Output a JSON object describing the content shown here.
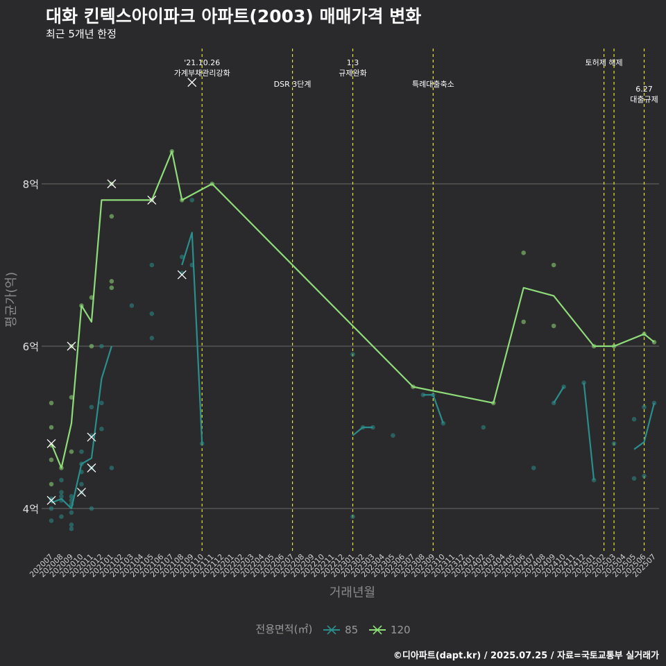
{
  "header": {
    "title": "대화 킨텍스아이파크 아파트(2003) 매매가격 변화",
    "subtitle": "최근 5개년 한정"
  },
  "caption": "©디아파트(dapt.kr) / 2025.07.25 / 자료=국토교통부 실거래가",
  "legend": {
    "title": "전용면적(㎡)",
    "items": [
      {
        "label": "85",
        "color": "#2a8f8c"
      },
      {
        "label": "120",
        "color": "#8fdc7a"
      }
    ]
  },
  "chart_data": {
    "type": "line",
    "xlabel": "거래년월",
    "ylabel": "평균가(억)",
    "x": [
      "202007",
      "202008",
      "202009",
      "202010",
      "202011",
      "202012",
      "202101",
      "202102",
      "202103",
      "202104",
      "202105",
      "202106",
      "202107",
      "202108",
      "202109",
      "202110",
      "202111",
      "202112",
      "202201",
      "202202",
      "202203",
      "202204",
      "202205",
      "202206",
      "202207",
      "202208",
      "202209",
      "202210",
      "202211",
      "202212",
      "202301",
      "202302",
      "202303",
      "202304",
      "202305",
      "202306",
      "202307",
      "202308",
      "202309",
      "202310",
      "202311",
      "202312",
      "202401",
      "202402",
      "202403",
      "202404",
      "202405",
      "202406",
      "202407",
      "202408",
      "202409",
      "202410",
      "202411",
      "202412",
      "202501",
      "202502",
      "202503",
      "202504",
      "202505",
      "202506",
      "202507"
    ],
    "ylim": [
      3.5,
      9.6
    ],
    "yticks": [
      {
        "value": 4,
        "label": "4억"
      },
      {
        "value": 6,
        "label": "6억"
      },
      {
        "value": 8,
        "label": "8억"
      }
    ],
    "grid": true,
    "legend_position": "bottom",
    "series": [
      {
        "name": "85",
        "color": "#2a8f8c",
        "line": [
          [
            "202007",
            4.07
          ],
          [
            "202008",
            4.12
          ],
          [
            "202009",
            4.0
          ],
          [
            "202010",
            4.55
          ],
          [
            "202011",
            4.62
          ],
          [
            "202012",
            5.6
          ],
          [
            "202101",
            6.0
          ],
          null,
          [
            "202108",
            7.0
          ],
          [
            "202109",
            7.4
          ],
          [
            "202110",
            4.8
          ],
          null,
          [
            "202301",
            4.9
          ],
          [
            "202302",
            5.0
          ],
          [
            "202303",
            5.0
          ],
          null,
          [
            "202308",
            5.4
          ],
          [
            "202309",
            5.4
          ],
          [
            "202310",
            5.05
          ],
          null,
          [
            "202409",
            5.3
          ],
          [
            "202410",
            5.5
          ],
          null,
          [
            "202412",
            5.55
          ],
          [
            "202501",
            4.35
          ],
          null,
          [
            "202505",
            4.73
          ],
          [
            "202506",
            4.82
          ],
          [
            "202507",
            5.3
          ]
        ],
        "points": [
          [
            "202007",
            4.1
          ],
          [
            "202007",
            4.0
          ],
          [
            "202007",
            3.85
          ],
          [
            "202007",
            4.12
          ],
          [
            "202008",
            4.35
          ],
          [
            "202008",
            4.2
          ],
          [
            "202008",
            4.15
          ],
          [
            "202008",
            4.1
          ],
          [
            "202008",
            3.9
          ],
          [
            "202009",
            4.15
          ],
          [
            "202009",
            4.1
          ],
          [
            "202009",
            4.05
          ],
          [
            "202009",
            3.95
          ],
          [
            "202009",
            3.8
          ],
          [
            "202009",
            3.75
          ],
          [
            "202010",
            4.7
          ],
          [
            "202010",
            4.55
          ],
          [
            "202010",
            4.45
          ],
          [
            "202010",
            4.3
          ],
          [
            "202010",
            4.2
          ],
          [
            "202011",
            5.25
          ],
          [
            "202011",
            4.9
          ],
          [
            "202011",
            4.5
          ],
          [
            "202011",
            4.0
          ],
          [
            "202012",
            6.0
          ],
          [
            "202012",
            5.3
          ],
          [
            "202012",
            4.98
          ],
          [
            "202101",
            4.5
          ],
          [
            "202103",
            6.5
          ],
          [
            "202105",
            7.0
          ],
          [
            "202105",
            6.4
          ],
          [
            "202105",
            6.1
          ],
          [
            "202108",
            7.1
          ],
          [
            "202108",
            6.9
          ],
          [
            "202109",
            7.8
          ],
          [
            "202109",
            7.0
          ],
          [
            "202110",
            4.8
          ],
          [
            "202301",
            5.9
          ],
          [
            "202301",
            3.9
          ],
          [
            "202302",
            5.0
          ],
          [
            "202303",
            5.0
          ],
          [
            "202305",
            4.9
          ],
          [
            "202308",
            5.4
          ],
          [
            "202309",
            5.4
          ],
          [
            "202310",
            5.05
          ],
          [
            "202402",
            5.0
          ],
          [
            "202407",
            4.5
          ],
          [
            "202409",
            5.3
          ],
          [
            "202410",
            5.5
          ],
          [
            "202412",
            5.55
          ],
          [
            "202501",
            4.35
          ],
          [
            "202503",
            4.8
          ],
          [
            "202505",
            5.1
          ],
          [
            "202505",
            4.37
          ],
          [
            "202506",
            5.25
          ],
          [
            "202506",
            4.4
          ],
          [
            "202507",
            5.3
          ]
        ],
        "markers": [
          [
            "202007",
            4.1
          ],
          [
            "202010",
            4.2
          ],
          [
            "202011",
            4.88
          ],
          [
            "202011",
            4.5
          ],
          [
            "202108",
            6.88
          ]
        ]
      },
      {
        "name": "120",
        "color": "#8fdc7a",
        "line": [
          [
            "202007",
            4.8
          ],
          [
            "202008",
            4.5
          ],
          [
            "202009",
            5.05
          ],
          [
            "202010",
            6.5
          ],
          [
            "202011",
            6.3
          ],
          [
            "202012",
            7.8
          ],
          [
            "202105",
            7.8
          ],
          [
            "202107",
            8.4
          ],
          [
            "202108",
            7.8
          ],
          [
            "202111",
            8.0
          ],
          [
            "202307",
            5.5
          ],
          [
            "202403",
            5.3
          ],
          [
            "202406",
            6.72
          ],
          [
            "202409",
            6.62
          ],
          [
            "202501",
            6.0
          ],
          [
            "202503",
            6.0
          ],
          [
            "202506",
            6.15
          ],
          [
            "202507",
            6.05
          ]
        ],
        "points": [
          [
            "202007",
            5.3
          ],
          [
            "202007",
            5.0
          ],
          [
            "202007",
            4.78
          ],
          [
            "202007",
            4.6
          ],
          [
            "202007",
            4.3
          ],
          [
            "202008",
            4.5
          ],
          [
            "202009",
            5.37
          ],
          [
            "202009",
            6.0
          ],
          [
            "202009",
            4.7
          ],
          [
            "202010",
            6.5
          ],
          [
            "202011",
            6.6
          ],
          [
            "202011",
            6.0
          ],
          [
            "202101",
            8.0
          ],
          [
            "202101",
            7.6
          ],
          [
            "202101",
            6.8
          ],
          [
            "202101",
            6.72
          ],
          [
            "202105",
            7.8
          ],
          [
            "202107",
            8.4
          ],
          [
            "202108",
            7.8
          ],
          [
            "202111",
            8.0
          ],
          [
            "202307",
            5.5
          ],
          [
            "202403",
            5.3
          ],
          [
            "202406",
            7.15
          ],
          [
            "202406",
            6.3
          ],
          [
            "202409",
            7.0
          ],
          [
            "202409",
            6.25
          ],
          [
            "202501",
            6.0
          ],
          [
            "202503",
            6.0
          ],
          [
            "202506",
            6.15
          ],
          [
            "202507",
            6.05
          ]
        ],
        "markers": [
          [
            "202007",
            4.8
          ],
          [
            "202009",
            6.0
          ],
          [
            "202101",
            8.0
          ],
          [
            "202105",
            7.8
          ],
          [
            "202109",
            9.25
          ]
        ]
      }
    ],
    "events": [
      {
        "x": "202110",
        "label": "'21.10.26\n가계부채관리강화",
        "level": 0
      },
      {
        "x": "202207",
        "label": "DSR 3단계",
        "level": 1
      },
      {
        "x": "202301",
        "label": "1.3\n규제완화",
        "level": 0
      },
      {
        "x": "202309",
        "label": "특례대출축소",
        "level": 1
      },
      {
        "x": "202502",
        "label": "토허제 해제",
        "level": 0
      },
      {
        "x": "202503",
        "label": "",
        "level": 0
      },
      {
        "x": "202506",
        "label": "6.27\n대출규제",
        "level": 2
      }
    ]
  }
}
